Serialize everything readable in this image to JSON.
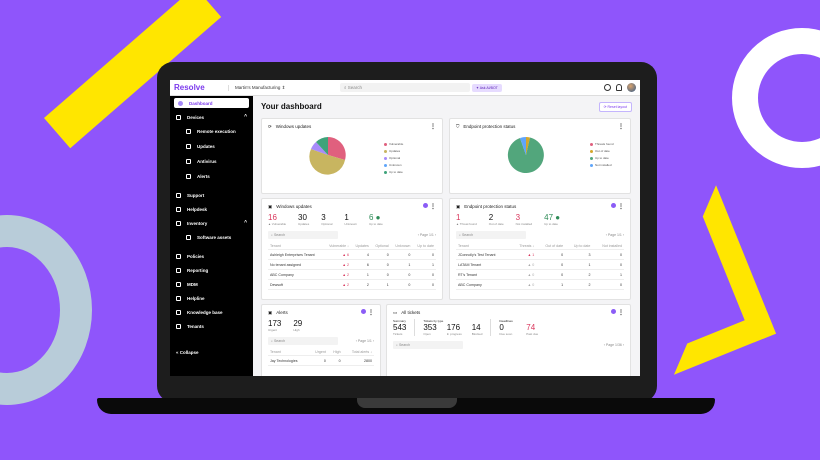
{
  "app": {
    "logo": "Resolve",
    "tenant": "Martin's Manufacturing ⇕",
    "search_placeholder": "Search",
    "ask_button": "✦ Ask AI/BOT",
    "reset_layout": "⟳ Reset layout"
  },
  "sidebar": {
    "items": [
      {
        "label": "Dashboard",
        "active": true
      },
      {
        "label": "Devices",
        "chev": "^"
      },
      {
        "label": "Remote execution",
        "sub": true
      },
      {
        "label": "Updates",
        "sub": true
      },
      {
        "label": "Antivirus",
        "sub": true
      },
      {
        "label": "Alerts",
        "sub": true
      },
      {
        "label": "Support"
      },
      {
        "label": "Helpdesk"
      },
      {
        "label": "Inventory",
        "chev": "^"
      },
      {
        "label": "Software assets",
        "sub": true
      },
      {
        "label": "Policies"
      },
      {
        "label": "Reporting"
      },
      {
        "label": "MDM"
      },
      {
        "label": "Helpline"
      },
      {
        "label": "Knowledge base"
      },
      {
        "label": "Tenants"
      }
    ],
    "collapse": "« Collapse"
  },
  "page_title": "Your dashboard",
  "pie1": {
    "title": "Windows updates",
    "legend": [
      "Vulnerable",
      "Updates",
      "Optional",
      "Unknown",
      "Up to date"
    ],
    "colors": [
      "#e0607e",
      "#c8b560",
      "#a78bfa",
      "#60a5fa",
      "#3ea37a"
    ]
  },
  "pie2": {
    "title": "Endpoint protection status",
    "legend": [
      "Threats found",
      "Out of date",
      "Up to date",
      "Not installed"
    ],
    "colors": [
      "#e0607e",
      "#d4a72c",
      "#52a67c",
      "#60a5fa"
    ]
  },
  "wu": {
    "title": "Windows updates",
    "stats": [
      {
        "n": "16",
        "l": "▲ Vulnerable"
      },
      {
        "n": "30",
        "l": "Updates"
      },
      {
        "n": "3",
        "l": "Optional"
      },
      {
        "n": "1",
        "l": "Unknown"
      },
      {
        "n": "6 ●",
        "l": "Up to date"
      }
    ],
    "search": "Search",
    "page": "‹   Page 1/1   ›",
    "cols": [
      "Tenant",
      "Vulnerable ↓",
      "Updates",
      "Optional",
      "Unknown",
      "Up to date"
    ],
    "rows": [
      [
        "Ashleigh Enterprises Tenant",
        "▲ 6",
        "4",
        "0",
        "0",
        "0"
      ],
      [
        "No tenant assigned",
        "▲ 2",
        "6",
        "0",
        "1",
        "1"
      ],
      [
        "ABC Company",
        "▲ 2",
        "1",
        "0",
        "0",
        "0"
      ],
      [
        "Dewsoft",
        "▲ 2",
        "2",
        "1",
        "0",
        "0"
      ]
    ]
  },
  "ep": {
    "title": "Endpoint protection status",
    "stats": [
      {
        "n": "1",
        "l": "▲ Threat found"
      },
      {
        "n": "2",
        "l": "Out of date"
      },
      {
        "n": "3",
        "l": "Not installed"
      },
      {
        "n": "47 ●",
        "l": "Up to date"
      }
    ],
    "search": "Search",
    "page": "‹   Page 1/1   ›",
    "cols": [
      "Tenant",
      "Threats ↓",
      "Out of date",
      "Up to date",
      "Not installed"
    ],
    "rows": [
      [
        "JConnolly's Test Tenant",
        "▲ 1",
        "0",
        "3",
        "0"
      ],
      [
        "LATAM Tenant",
        "▲ 0",
        "0",
        "1",
        "0"
      ],
      [
        "RT's Tenant",
        "▲ 0",
        "0",
        "2",
        "1"
      ],
      [
        "ABC Company",
        "▲ 0",
        "1",
        "2",
        "0"
      ]
    ]
  },
  "alerts": {
    "title": "Alerts",
    "stats": [
      {
        "n": "173",
        "l": "Urgent"
      },
      {
        "n": "29",
        "l": "High"
      }
    ],
    "search": "Search",
    "page": "‹  Page 1/1  ›",
    "cols": [
      "Tenant",
      "Urgent",
      "High",
      "Total alerts ↓"
    ],
    "rows": [
      [
        "Jay Technologies",
        "0",
        "0",
        "2800"
      ]
    ]
  },
  "tickets": {
    "title": "All tickets",
    "summary_label": "Summary",
    "summary": {
      "n": "543",
      "l": "Tickets"
    },
    "type_label": "Tickets by type",
    "types": [
      {
        "n": "353",
        "l": "Open"
      },
      {
        "n": "176",
        "l": "In progress"
      },
      {
        "n": "14",
        "l": "Blocked"
      }
    ],
    "deadline_label": "Deadlines",
    "deadlines": [
      {
        "n": "0",
        "l": "Due soon"
      },
      {
        "n": "74",
        "l": "Past due"
      }
    ],
    "search": "Search",
    "page": "‹   Page 1/36   ›"
  }
}
